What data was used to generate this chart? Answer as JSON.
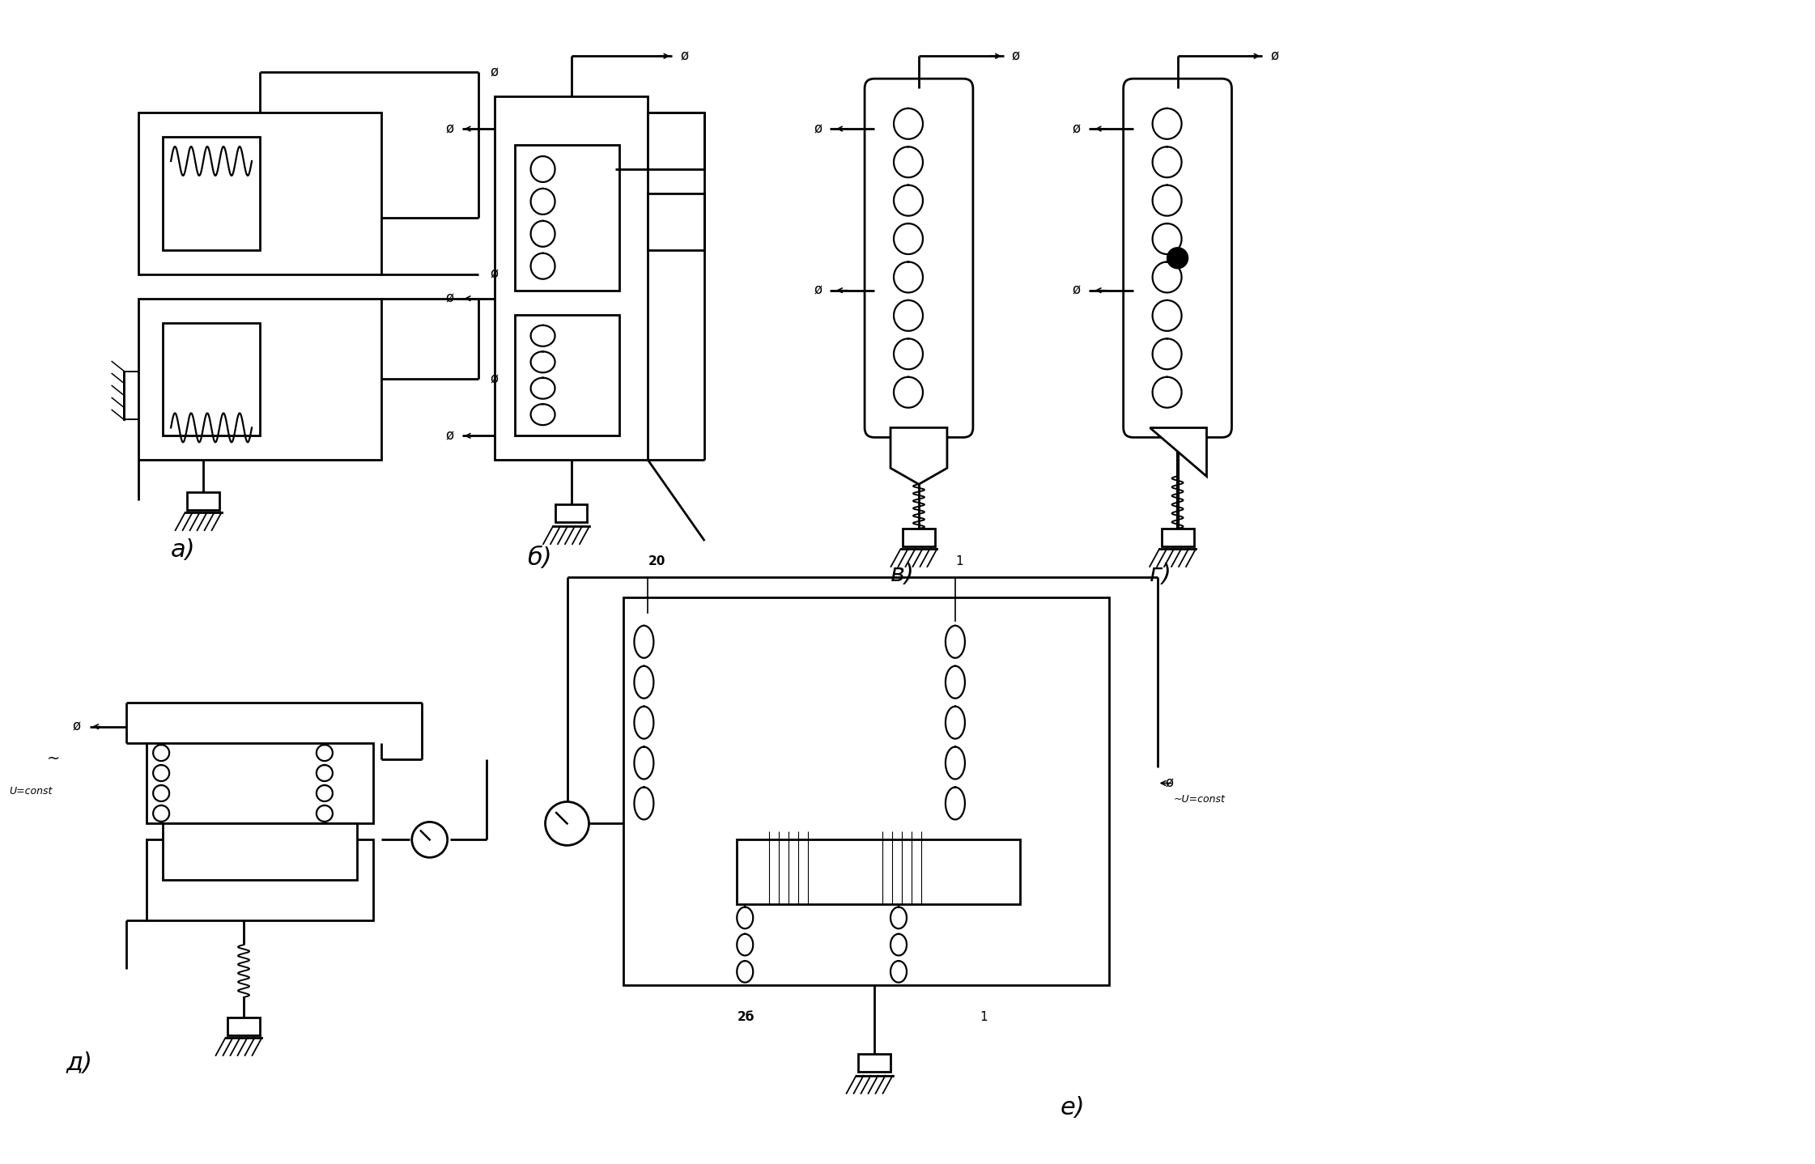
{
  "bg": "#ffffff",
  "lc": "#000000",
  "lw": 2.0,
  "label_a": "а)",
  "label_b": "б)",
  "label_v": "в)",
  "label_g": "г)",
  "label_d": "д)",
  "label_e": "е)",
  "ann_2a": "20",
  "ann_2b": "2б",
  "ann_1a": "1",
  "ann_1b": "1",
  "phi_sym": "ø",
  "v_const": "U=const",
  "tilde": "~",
  "tilde_v": "~U=const"
}
